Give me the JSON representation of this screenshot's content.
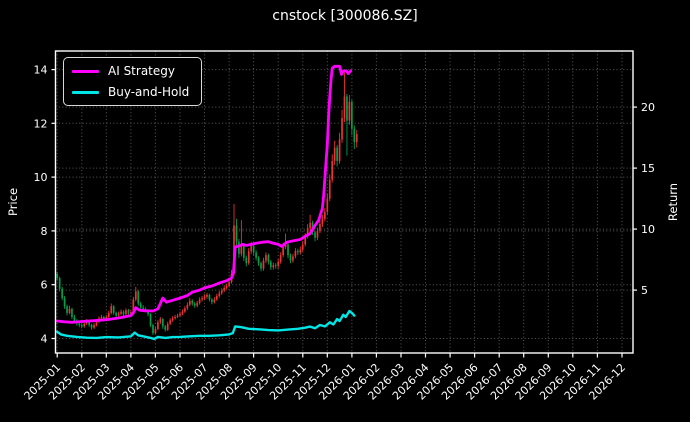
{
  "window": {
    "title": "cnstock [300086.SZ]"
  },
  "chart": {
    "title": "cnstock [300086.SZ]",
    "left_axis_label": "Price",
    "right_axis_label": "Return",
    "legend_items": [
      {
        "label": "AI Strategy",
        "color": "#ff00ff"
      },
      {
        "label": "Buy-and-Hold",
        "color": "#00e5e5"
      }
    ]
  },
  "colors": {
    "background": "#000000",
    "text": "#ffffff",
    "spine": "#ffffff",
    "grid": "#5a5a5a",
    "candle_up": "#ed3232",
    "candle_down": "#00a04d",
    "ai_strategy": "#ff00ff",
    "buy_and_hold": "#00e5e5"
  },
  "chart_data": {
    "type": "candlestick+line",
    "title": "cnstock [300086.SZ]",
    "xlabel": "",
    "ylabel_left": "Price",
    "ylabel_right": "Return",
    "grid": true,
    "legend_position": "upper left",
    "x_ticks": [
      "2025-01",
      "2025-02",
      "2025-03",
      "2025-04",
      "2025-05",
      "2025-06",
      "2025-07",
      "2025-08",
      "2025-09",
      "2025-10",
      "2025-11",
      "2025-12",
      "2026-01",
      "2026-02",
      "2026-03",
      "2026-04",
      "2026-05",
      "2026-06",
      "2026-07",
      "2026-08",
      "2026-09",
      "2026-10",
      "2026-11",
      "2026-12"
    ],
    "x_domain_months": [
      -0.07,
      23.45
    ],
    "price_ticks": [
      4,
      6,
      8,
      10,
      12,
      14
    ],
    "price_ylim": [
      3.46,
      14.69
    ],
    "return_ticks": [
      5,
      10,
      15,
      20
    ],
    "return_ylim": [
      -0.16,
      24.6
    ],
    "candles_t0": 0,
    "candles_dt": 0.1,
    "candles_ohlc": [
      [
        6.4,
        6.48,
        6.15,
        6.25
      ],
      [
        6.25,
        6.3,
        5.75,
        5.85
      ],
      [
        5.85,
        5.92,
        5.42,
        5.5
      ],
      [
        5.5,
        5.58,
        5.1,
        5.2
      ],
      [
        5.2,
        5.26,
        4.86,
        4.95
      ],
      [
        4.95,
        5.22,
        4.9,
        5.1
      ],
      [
        5.1,
        5.14,
        4.72,
        4.8
      ],
      [
        4.8,
        4.88,
        4.56,
        4.65
      ],
      [
        4.65,
        4.72,
        4.47,
        4.55
      ],
      [
        4.55,
        4.62,
        4.42,
        4.5
      ],
      [
        4.5,
        4.56,
        4.38,
        4.45
      ],
      [
        4.45,
        4.62,
        4.4,
        4.55
      ],
      [
        4.55,
        4.72,
        4.5,
        4.65
      ],
      [
        4.65,
        4.68,
        4.43,
        4.5
      ],
      [
        4.5,
        4.55,
        4.32,
        4.4
      ],
      [
        4.4,
        4.57,
        4.35,
        4.5
      ],
      [
        4.5,
        4.68,
        4.45,
        4.62
      ],
      [
        4.62,
        4.82,
        4.57,
        4.75
      ],
      [
        4.75,
        4.88,
        4.7,
        4.8
      ],
      [
        4.8,
        4.85,
        4.65,
        4.72
      ],
      [
        4.72,
        4.87,
        4.66,
        4.8
      ],
      [
        4.8,
        5.03,
        4.75,
        4.95
      ],
      [
        4.95,
        5.3,
        4.9,
        5.2
      ],
      [
        5.2,
        5.24,
        4.88,
        4.95
      ],
      [
        4.95,
        5.0,
        4.78,
        4.85
      ],
      [
        4.85,
        5.0,
        4.8,
        4.92
      ],
      [
        4.92,
        5.08,
        4.86,
        5.0
      ],
      [
        5.0,
        5.05,
        4.83,
        4.9
      ],
      [
        4.9,
        5.12,
        4.85,
        5.05
      ],
      [
        5.05,
        5.1,
        4.85,
        4.92
      ],
      [
        4.92,
        5.06,
        4.87,
        4.98
      ],
      [
        4.98,
        5.55,
        4.94,
        5.45
      ],
      [
        5.45,
        5.92,
        5.38,
        5.75
      ],
      [
        5.75,
        5.8,
        5.22,
        5.3
      ],
      [
        5.3,
        5.36,
        5.07,
        5.15
      ],
      [
        5.15,
        5.24,
        5.02,
        5.1
      ],
      [
        5.1,
        5.16,
        4.97,
        5.05
      ],
      [
        5.05,
        5.09,
        4.82,
        4.9
      ],
      [
        4.9,
        4.94,
        4.42,
        4.5
      ],
      [
        4.5,
        4.55,
        4.13,
        4.2
      ],
      [
        4.2,
        4.43,
        4.15,
        4.35
      ],
      [
        4.35,
        4.68,
        4.3,
        4.6
      ],
      [
        4.6,
        4.8,
        4.54,
        4.72
      ],
      [
        4.72,
        4.76,
        4.36,
        4.45
      ],
      [
        4.45,
        4.5,
        4.26,
        4.32
      ],
      [
        4.32,
        4.62,
        4.28,
        4.55
      ],
      [
        4.55,
        4.75,
        4.5,
        4.68
      ],
      [
        4.68,
        4.83,
        4.62,
        4.75
      ],
      [
        4.75,
        4.88,
        4.7,
        4.8
      ],
      [
        4.8,
        4.92,
        4.76,
        4.85
      ],
      [
        4.85,
        5.0,
        4.8,
        4.92
      ],
      [
        4.92,
        5.08,
        4.86,
        5.0
      ],
      [
        5.0,
        5.2,
        4.95,
        5.12
      ],
      [
        5.12,
        5.34,
        5.06,
        5.25
      ],
      [
        5.25,
        5.5,
        5.2,
        5.4
      ],
      [
        5.4,
        5.46,
        5.22,
        5.3
      ],
      [
        5.3,
        5.36,
        5.14,
        5.22
      ],
      [
        5.22,
        5.4,
        5.16,
        5.32
      ],
      [
        5.32,
        5.53,
        5.26,
        5.45
      ],
      [
        5.45,
        5.58,
        5.38,
        5.5
      ],
      [
        5.5,
        5.64,
        5.44,
        5.55
      ],
      [
        5.55,
        5.7,
        5.48,
        5.62
      ],
      [
        5.62,
        5.66,
        5.38,
        5.45
      ],
      [
        5.45,
        5.5,
        5.27,
        5.35
      ],
      [
        5.35,
        5.54,
        5.3,
        5.45
      ],
      [
        5.45,
        5.66,
        5.4,
        5.58
      ],
      [
        5.58,
        5.77,
        5.52,
        5.68
      ],
      [
        5.68,
        5.87,
        5.62,
        5.78
      ],
      [
        5.78,
        5.98,
        5.72,
        5.88
      ],
      [
        5.88,
        6.04,
        5.82,
        5.95
      ],
      [
        5.95,
        6.2,
        5.9,
        6.1
      ],
      [
        6.1,
        6.55,
        6.04,
        6.4
      ],
      [
        6.4,
        9.0,
        6.34,
        8.2
      ],
      [
        8.2,
        8.45,
        7.45,
        7.6
      ],
      [
        7.6,
        7.7,
        7.0,
        7.15
      ],
      [
        7.15,
        8.4,
        7.05,
        7.45
      ],
      [
        7.45,
        7.52,
        6.88,
        7.0
      ],
      [
        7.0,
        7.08,
        6.68,
        6.8
      ],
      [
        6.8,
        7.36,
        6.74,
        7.25
      ],
      [
        7.25,
        7.6,
        7.15,
        7.45
      ],
      [
        7.45,
        7.52,
        7.1,
        7.2
      ],
      [
        7.2,
        7.28,
        6.9,
        7.0
      ],
      [
        7.0,
        7.06,
        6.7,
        6.8
      ],
      [
        6.8,
        6.86,
        6.5,
        6.6
      ],
      [
        6.6,
        7.0,
        6.52,
        6.9
      ],
      [
        6.9,
        7.2,
        6.8,
        7.1
      ],
      [
        7.1,
        7.16,
        6.75,
        6.85
      ],
      [
        6.85,
        6.92,
        6.55,
        6.65
      ],
      [
        6.65,
        6.82,
        6.56,
        6.72
      ],
      [
        6.72,
        6.8,
        6.6,
        6.7
      ],
      [
        6.7,
        6.95,
        6.6,
        6.85
      ],
      [
        6.85,
        7.2,
        6.78,
        7.1
      ],
      [
        7.1,
        7.55,
        7.02,
        7.4
      ],
      [
        7.4,
        7.9,
        7.32,
        7.5
      ],
      [
        7.5,
        7.56,
        6.98,
        7.1
      ],
      [
        7.1,
        7.16,
        6.8,
        6.9
      ],
      [
        6.9,
        7.15,
        6.82,
        7.05
      ],
      [
        7.05,
        7.36,
        6.98,
        7.25
      ],
      [
        7.25,
        7.34,
        7.1,
        7.2
      ],
      [
        7.2,
        7.42,
        7.12,
        7.3
      ],
      [
        7.3,
        7.62,
        7.22,
        7.5
      ],
      [
        7.5,
        7.92,
        7.42,
        7.8
      ],
      [
        7.8,
        8.25,
        7.72,
        8.1
      ],
      [
        8.1,
        8.6,
        8.0,
        8.3
      ],
      [
        8.3,
        8.38,
        7.85,
        7.95
      ],
      [
        7.95,
        8.02,
        7.62,
        7.75
      ],
      [
        7.75,
        8.12,
        7.66,
        8.0
      ],
      [
        8.0,
        8.4,
        7.92,
        8.25
      ],
      [
        8.25,
        8.6,
        8.15,
        8.45
      ],
      [
        8.45,
        8.85,
        8.35,
        8.7
      ],
      [
        8.7,
        9.4,
        8.6,
        9.2
      ],
      [
        9.2,
        10.1,
        9.1,
        9.9
      ],
      [
        9.9,
        10.85,
        9.8,
        10.6
      ],
      [
        10.6,
        11.35,
        10.45,
        11.1
      ],
      [
        11.1,
        11.2,
        10.4,
        10.6
      ],
      [
        10.6,
        11.65,
        10.5,
        11.4
      ],
      [
        11.4,
        12.5,
        11.28,
        12.2
      ],
      [
        12.2,
        13.9,
        12.05,
        13.0
      ],
      [
        13.0,
        13.1,
        10.8,
        12.1
      ],
      [
        12.1,
        13.05,
        11.95,
        12.8
      ],
      [
        12.8,
        12.88,
        11.55,
        11.8
      ],
      [
        11.8,
        11.92,
        11.05,
        11.3
      ],
      [
        11.3,
        11.75,
        11.1,
        11.6
      ]
    ],
    "series": [
      {
        "name": "AI Strategy",
        "color": "#ff00ff",
        "stroke_width": 2.8,
        "points": [
          [
            0,
            4.65
          ],
          [
            0.3,
            4.62
          ],
          [
            0.6,
            4.6
          ],
          [
            1.0,
            4.63
          ],
          [
            1.5,
            4.66
          ],
          [
            2.0,
            4.7
          ],
          [
            2.5,
            4.76
          ],
          [
            3.0,
            4.85
          ],
          [
            3.1,
            4.95
          ],
          [
            3.2,
            5.15
          ],
          [
            3.35,
            5.05
          ],
          [
            3.6,
            5.03
          ],
          [
            3.9,
            5.02
          ],
          [
            4.1,
            5.1
          ],
          [
            4.3,
            5.5
          ],
          [
            4.45,
            5.35
          ],
          [
            4.7,
            5.42
          ],
          [
            5.0,
            5.5
          ],
          [
            5.3,
            5.6
          ],
          [
            5.5,
            5.72
          ],
          [
            5.8,
            5.8
          ],
          [
            6.0,
            5.88
          ],
          [
            6.3,
            5.95
          ],
          [
            6.6,
            6.06
          ],
          [
            6.9,
            6.15
          ],
          [
            7.1,
            6.25
          ],
          [
            7.18,
            6.45
          ],
          [
            7.25,
            7.4
          ],
          [
            7.4,
            7.44
          ],
          [
            7.55,
            7.5
          ],
          [
            7.7,
            7.46
          ],
          [
            7.9,
            7.5
          ],
          [
            8.1,
            7.54
          ],
          [
            8.35,
            7.58
          ],
          [
            8.6,
            7.6
          ],
          [
            8.8,
            7.54
          ],
          [
            9.0,
            7.5
          ],
          [
            9.15,
            7.42
          ],
          [
            9.35,
            7.58
          ],
          [
            9.6,
            7.63
          ],
          [
            9.9,
            7.68
          ],
          [
            10.1,
            7.8
          ],
          [
            10.3,
            7.9
          ],
          [
            10.5,
            8.2
          ],
          [
            10.65,
            8.4
          ],
          [
            10.8,
            8.85
          ],
          [
            10.85,
            9.3
          ],
          [
            10.95,
            10.6
          ],
          [
            11.0,
            11.2
          ],
          [
            11.05,
            12.2
          ],
          [
            11.1,
            13.0
          ],
          [
            11.15,
            13.6
          ],
          [
            11.2,
            14.05
          ],
          [
            11.3,
            14.12
          ],
          [
            11.5,
            14.12
          ],
          [
            11.58,
            13.82
          ],
          [
            11.65,
            13.95
          ],
          [
            11.78,
            13.95
          ],
          [
            11.85,
            13.85
          ],
          [
            11.95,
            13.95
          ]
        ]
      },
      {
        "name": "Buy-and-Hold",
        "color": "#00e5e5",
        "stroke_width": 2.4,
        "points": [
          [
            0,
            4.25
          ],
          [
            0.15,
            4.15
          ],
          [
            0.4,
            4.1
          ],
          [
            0.8,
            4.06
          ],
          [
            1.2,
            4.03
          ],
          [
            1.6,
            4.02
          ],
          [
            2.0,
            4.05
          ],
          [
            2.5,
            4.04
          ],
          [
            3.0,
            4.08
          ],
          [
            3.15,
            4.22
          ],
          [
            3.3,
            4.12
          ],
          [
            3.5,
            4.08
          ],
          [
            3.8,
            4.02
          ],
          [
            3.95,
            3.98
          ],
          [
            4.1,
            4.06
          ],
          [
            4.4,
            4.02
          ],
          [
            4.7,
            4.05
          ],
          [
            5.0,
            4.06
          ],
          [
            5.4,
            4.08
          ],
          [
            5.8,
            4.1
          ],
          [
            6.2,
            4.1
          ],
          [
            6.6,
            4.12
          ],
          [
            7.0,
            4.15
          ],
          [
            7.15,
            4.2
          ],
          [
            7.25,
            4.45
          ],
          [
            7.5,
            4.42
          ],
          [
            7.8,
            4.36
          ],
          [
            8.2,
            4.34
          ],
          [
            8.6,
            4.31
          ],
          [
            9.0,
            4.3
          ],
          [
            9.4,
            4.33
          ],
          [
            9.8,
            4.36
          ],
          [
            10.1,
            4.4
          ],
          [
            10.3,
            4.44
          ],
          [
            10.5,
            4.38
          ],
          [
            10.7,
            4.5
          ],
          [
            10.9,
            4.45
          ],
          [
            11.1,
            4.6
          ],
          [
            11.25,
            4.52
          ],
          [
            11.4,
            4.72
          ],
          [
            11.5,
            4.65
          ],
          [
            11.65,
            4.88
          ],
          [
            11.75,
            4.8
          ],
          [
            11.9,
            5.02
          ],
          [
            12.0,
            4.95
          ],
          [
            12.1,
            4.85
          ]
        ]
      }
    ]
  }
}
